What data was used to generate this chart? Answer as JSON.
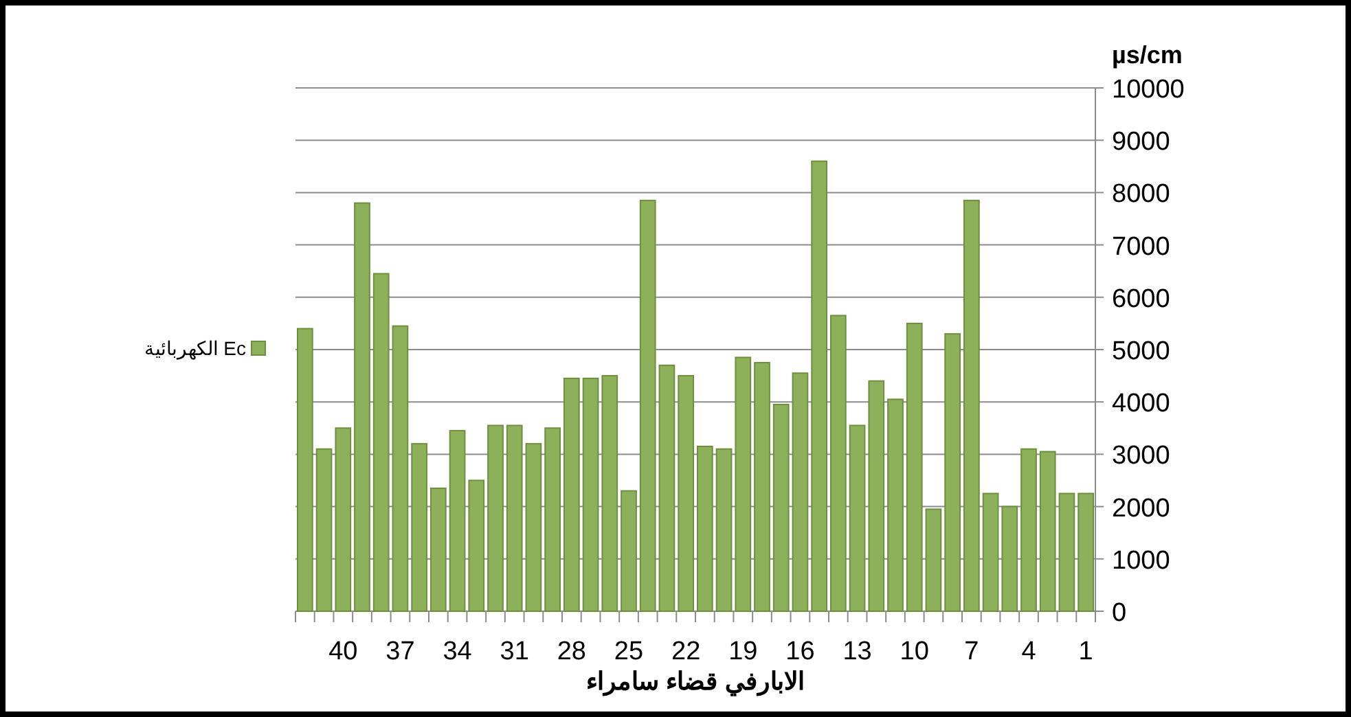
{
  "chart_data": {
    "type": "bar",
    "xlabel": "الابارفي قضاء سامراء",
    "ylabel": "µs/cm",
    "categories": [
      null,
      null,
      "40",
      null,
      null,
      "37",
      null,
      null,
      "34",
      null,
      null,
      "31",
      null,
      null,
      "28",
      null,
      null,
      "25",
      null,
      null,
      "22",
      null,
      null,
      "19",
      null,
      null,
      "16",
      null,
      null,
      "13",
      null,
      null,
      "10",
      null,
      null,
      "7",
      null,
      null,
      "4",
      null,
      null,
      "1"
    ],
    "series": [
      {
        "name": "الكهربائية Ec",
        "color": "#8db15a",
        "values": [
          5400,
          3100,
          3500,
          7800,
          6450,
          5450,
          3200,
          2350,
          3450,
          2500,
          3550,
          3550,
          3200,
          3500,
          4450,
          4450,
          4500,
          2300,
          7850,
          4700,
          4500,
          3150,
          3100,
          4850,
          4750,
          3950,
          4550,
          8600,
          5650,
          3550,
          4400,
          4050,
          5500,
          1950,
          5300,
          7850,
          2250,
          2000,
          3100,
          3050,
          2250,
          2250
        ]
      }
    ],
    "ylim": [
      0,
      10000
    ],
    "yticks": [
      0,
      1000,
      2000,
      3000,
      4000,
      5000,
      6000,
      7000,
      8000,
      9000,
      10000
    ],
    "grid": "y",
    "legend": "left"
  }
}
